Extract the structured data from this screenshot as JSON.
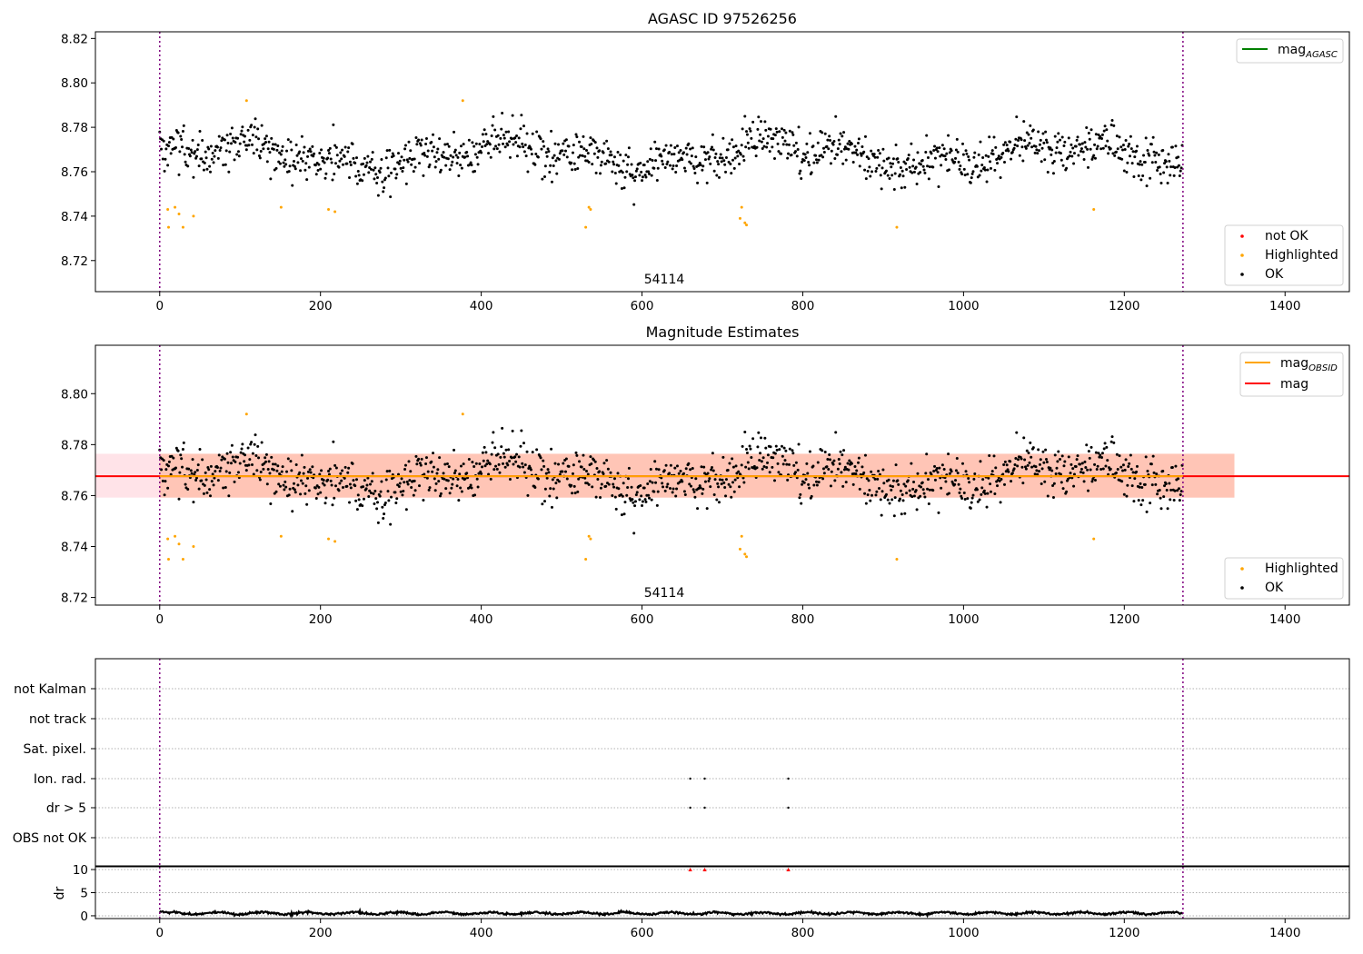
{
  "chart_data": [
    {
      "type": "scatter",
      "title": "AGASC ID 97526256",
      "annotation": "54114",
      "xlim": [
        -80,
        1480
      ],
      "ylim": [
        8.706,
        8.823
      ],
      "x_ticks": [
        0,
        200,
        400,
        600,
        800,
        1000,
        1200,
        1400
      ],
      "y_ticks": [
        8.72,
        8.74,
        8.76,
        8.78,
        8.8,
        8.82
      ],
      "y_tick_labels": [
        "8.72",
        "8.74",
        "8.76",
        "8.78",
        "8.80",
        "8.82"
      ],
      "vlines_x": [
        0,
        1273
      ],
      "legend_lines": [
        {
          "label": "mag",
          "sub": "AGASC",
          "color": "#008000"
        }
      ],
      "legend_points": [
        {
          "label": "not OK",
          "color": "#ff0000"
        },
        {
          "label": "Highlighted",
          "color": "#ffa500"
        },
        {
          "label": "OK",
          "color": "#000000"
        }
      ],
      "series": [
        {
          "name": "OK",
          "color": "#000000",
          "generated": true,
          "n": 1273,
          "center": 8.7675,
          "scatter": 0.0085
        },
        {
          "name": "Highlighted",
          "color": "#ffa500",
          "points": [
            [
              10,
              8.743
            ],
            [
              11,
              8.735
            ],
            [
              19,
              8.744
            ],
            [
              24,
              8.741
            ],
            [
              29,
              8.735
            ],
            [
              42,
              8.74
            ],
            [
              108,
              8.792
            ],
            [
              151,
              8.744
            ],
            [
              210,
              8.743
            ],
            [
              218,
              8.742
            ],
            [
              377,
              8.792
            ],
            [
              530,
              8.735
            ],
            [
              534,
              8.744
            ],
            [
              536,
              8.743
            ],
            [
              722,
              8.739
            ],
            [
              724,
              8.744
            ],
            [
              728,
              8.737
            ],
            [
              730,
              8.736
            ],
            [
              917,
              8.735
            ],
            [
              1162,
              8.743
            ]
          ]
        },
        {
          "name": "not OK",
          "color": "#ff0000",
          "points": []
        }
      ]
    },
    {
      "type": "scatter",
      "title": "Magnitude Estimates",
      "annotation": "54114",
      "xlim": [
        -80,
        1480
      ],
      "ylim": [
        8.717,
        8.819
      ],
      "x_ticks": [
        0,
        200,
        400,
        600,
        800,
        1000,
        1200,
        1400
      ],
      "y_ticks": [
        8.72,
        8.74,
        8.76,
        8.78,
        8.8
      ],
      "y_tick_labels": [
        "8.72",
        "8.74",
        "8.76",
        "8.78",
        "8.80"
      ],
      "vlines_x": [
        0,
        1273
      ],
      "hlines": [
        {
          "name": "mag",
          "sub": "OBSID",
          "value": 8.7676,
          "x_range": [
            0,
            1273
          ],
          "color": "#ffa500"
        },
        {
          "name": "mag",
          "sub": "",
          "value": 8.7676,
          "x_range": [
            -80,
            1480
          ],
          "color": "#ff0000"
        }
      ],
      "bands": [
        {
          "color": "#ffc0cb",
          "range": [
            8.7592,
            8.7764
          ],
          "x_range": [
            -80,
            1337
          ]
        },
        {
          "color": "#ffa07a",
          "range": [
            8.7592,
            8.7764
          ],
          "x_range": [
            0,
            1337
          ]
        }
      ],
      "legend_points": [
        {
          "label": "Highlighted",
          "color": "#ffa500"
        },
        {
          "label": "OK",
          "color": "#000000"
        }
      ],
      "series": [
        {
          "name": "OK",
          "color": "#000000",
          "generated": true,
          "same_as": "panel1"
        },
        {
          "name": "Highlighted",
          "color": "#ffa500",
          "same_as": "panel1"
        }
      ]
    },
    {
      "type": "scatter",
      "title": "",
      "xlim": [
        -80,
        1480
      ],
      "x_ticks": [
        0,
        200,
        400,
        600,
        800,
        1000,
        1200,
        1400
      ],
      "categories": [
        "not Kalman",
        "not track",
        "Sat. pixel.",
        "Ion. rad.",
        "dr > 5",
        "OBS not OK"
      ],
      "flag_points": {
        "Ion. rad.": [
          660,
          678,
          782
        ],
        "dr > 5": [
          660,
          678,
          782
        ]
      },
      "vlines_x": [
        0,
        1273
      ]
    },
    {
      "type": "line",
      "title": "",
      "ylabel": "dr",
      "xlim": [
        -80,
        1480
      ],
      "ylim": [
        -0.6,
        10.6
      ],
      "x_ticks": [
        0,
        200,
        400,
        600,
        800,
        1000,
        1200,
        1400
      ],
      "y_ticks": [
        0,
        5,
        10
      ],
      "y_tick_labels": [
        "0",
        "5",
        "10"
      ],
      "generated_series": {
        "n": 1273,
        "mean": 0.55,
        "amp": 0.35
      },
      "capped_markers": {
        "x": [
          660,
          678,
          782
        ],
        "y": 10,
        "color": "#ff0000"
      },
      "vlines_x": [
        0,
        1273
      ]
    }
  ]
}
